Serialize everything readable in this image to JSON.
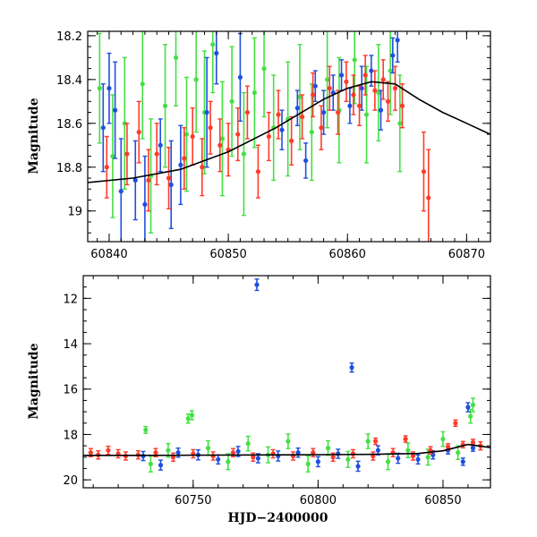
{
  "chart_data": [
    {
      "type": "scatter",
      "panel": "top",
      "xlabel": "",
      "ylabel": "Magnitude",
      "xlim": [
        60838.2,
        60872
      ],
      "ylim": [
        19.14,
        18.18
      ],
      "inverted_y": true,
      "xticks": [
        60840,
        60850,
        60860,
        60870
      ],
      "yticks": [
        18.2,
        18.4,
        18.6,
        18.8,
        19
      ],
      "ytick_labels": [
        "18.2",
        "18.4",
        "18.6",
        "18.8",
        "19"
      ],
      "grid": false,
      "colors": {
        "blue": "#1f4fe0",
        "green": "#44e044",
        "red": "#ff3b2a",
        "model": "#000000"
      },
      "model_curve": {
        "x": [
          60838.2,
          60842,
          60846,
          60850,
          60854,
          60858,
          60860,
          60862,
          60864,
          60866,
          60868,
          60870,
          60872
        ],
        "y": [
          18.87,
          18.85,
          18.81,
          18.73,
          18.62,
          18.49,
          18.44,
          18.41,
          18.42,
          18.49,
          18.55,
          18.6,
          18.65
        ]
      },
      "series": [
        {
          "color": "blue",
          "x": [
            60839.5,
            60840.0,
            60840.5,
            60841.0,
            60842.2,
            60843.0,
            60844.3,
            60845.2,
            60846.0,
            60848.2,
            60849.0,
            60851.0,
            60854.5,
            60855.8,
            60856.5,
            60857.3,
            60858.0,
            60858.8,
            60859.5,
            60860.2,
            60861.2,
            60862.0,
            60862.8,
            60863.8,
            60864.2
          ],
          "y": [
            18.62,
            18.44,
            18.54,
            18.91,
            18.86,
            18.97,
            18.7,
            18.88,
            18.79,
            18.55,
            18.28,
            18.39,
            18.63,
            18.53,
            18.77,
            18.43,
            18.55,
            18.46,
            18.38,
            18.52,
            18.44,
            18.36,
            18.54,
            18.29,
            18.22
          ],
          "err": [
            0.2,
            0.16,
            0.22,
            0.24,
            0.18,
            0.22,
            0.12,
            0.2,
            0.18,
            0.25,
            0.14,
            0.2,
            0.09,
            0.08,
            0.08,
            0.07,
            0.1,
            0.08,
            0.07,
            0.08,
            0.1,
            0.07,
            0.09,
            0.08,
            0.1
          ]
        },
        {
          "color": "green",
          "x": [
            60839.2,
            60840.3,
            60841.3,
            60842.8,
            60843.5,
            60844.7,
            60845.6,
            60846.5,
            60847.3,
            60848.0,
            60848.7,
            60849.5,
            60850.3,
            60851.3,
            60852.2,
            60853.0,
            60853.8,
            60855.0,
            60856.0,
            60857.0,
            60858.3,
            60859.3,
            60860.6,
            60861.6,
            60862.6,
            60863.6,
            60864.4
          ],
          "y": [
            18.44,
            18.75,
            18.6,
            18.42,
            18.84,
            18.52,
            18.3,
            18.65,
            18.4,
            18.55,
            18.24,
            18.67,
            18.5,
            18.74,
            18.46,
            18.35,
            18.62,
            18.58,
            18.48,
            18.64,
            18.4,
            18.54,
            18.31,
            18.56,
            18.46,
            18.36,
            18.6
          ],
          "err": [
            0.25,
            0.28,
            0.3,
            0.25,
            0.26,
            0.28,
            0.22,
            0.26,
            0.24,
            0.28,
            0.22,
            0.26,
            0.25,
            0.28,
            0.25,
            0.22,
            0.24,
            0.26,
            0.24,
            0.22,
            0.22,
            0.24,
            0.2,
            0.22,
            0.22,
            0.2,
            0.22
          ]
        },
        {
          "color": "red",
          "x": [
            60839.8,
            60841.5,
            60842.5,
            60843.3,
            60844.0,
            60845.0,
            60846.3,
            60847.0,
            60847.8,
            60848.5,
            60849.3,
            60850.0,
            60850.8,
            60851.6,
            60852.5,
            60853.4,
            60854.2,
            60855.3,
            60856.2,
            60857.1,
            60857.8,
            60858.5,
            60859.2,
            60859.9,
            60860.5,
            60861.0,
            60861.5,
            60862.3,
            60863.0,
            60863.4,
            60864.0,
            60864.6,
            60866.4,
            60866.8
          ],
          "y": [
            18.8,
            18.74,
            18.64,
            18.86,
            18.74,
            18.85,
            18.76,
            18.66,
            18.8,
            18.62,
            18.7,
            18.72,
            18.65,
            18.55,
            18.82,
            18.66,
            18.56,
            18.68,
            18.57,
            18.47,
            18.62,
            18.44,
            18.55,
            18.41,
            18.47,
            18.52,
            18.38,
            18.45,
            18.4,
            18.5,
            18.44,
            18.52,
            18.82,
            18.94
          ],
          "err": [
            0.14,
            0.14,
            0.14,
            0.14,
            0.14,
            0.14,
            0.14,
            0.13,
            0.13,
            0.12,
            0.12,
            0.12,
            0.12,
            0.12,
            0.12,
            0.11,
            0.11,
            0.11,
            0.1,
            0.1,
            0.1,
            0.1,
            0.1,
            0.09,
            0.09,
            0.09,
            0.09,
            0.09,
            0.09,
            0.09,
            0.1,
            0.1,
            0.18,
            0.22
          ]
        }
      ]
    },
    {
      "type": "scatter",
      "panel": "bottom",
      "xlabel": "HJD−2400000",
      "ylabel": "Magnitude",
      "xlim": [
        60706,
        60869
      ],
      "ylim": [
        20.35,
        11.0
      ],
      "inverted_y": true,
      "xticks": [
        60750,
        60800,
        60850
      ],
      "yticks": [
        12,
        14,
        16,
        18,
        20
      ],
      "ytick_labels": [
        "12",
        "14",
        "16",
        "18",
        "20"
      ],
      "grid": false,
      "colors": {
        "blue": "#1f4fe0",
        "green": "#44e044",
        "red": "#ff3b2a",
        "model": "#000000"
      },
      "model_curve": {
        "x": [
          60706,
          60730,
          60760,
          60790,
          60820,
          60840,
          60850,
          60860,
          60869
        ],
        "y": [
          18.92,
          18.92,
          18.91,
          18.9,
          18.88,
          18.84,
          18.72,
          18.44,
          18.58
        ]
      },
      "series": [
        {
          "color": "blue",
          "x": [
            60730,
            60737,
            60744,
            60752,
            60760,
            60768,
            60776,
            60784,
            60792,
            60800,
            60808,
            60816,
            60824,
            60832,
            60840,
            60846,
            60852,
            60858,
            60862,
            60775.5,
            60813.5,
            60860.0
          ],
          "y": [
            18.95,
            19.35,
            18.8,
            18.9,
            19.1,
            18.75,
            19.05,
            18.95,
            18.8,
            19.2,
            18.85,
            19.4,
            18.7,
            19.05,
            19.1,
            18.9,
            18.7,
            19.2,
            18.6,
            11.4,
            15.05,
            16.8
          ],
          "err": [
            0.2,
            0.22,
            0.2,
            0.22,
            0.2,
            0.22,
            0.2,
            0.22,
            0.2,
            0.22,
            0.2,
            0.22,
            0.2,
            0.22,
            0.2,
            0.18,
            0.16,
            0.16,
            0.14,
            0.25,
            0.2,
            0.2
          ]
        },
        {
          "color": "green",
          "x": [
            60731,
            60733,
            60740,
            60748,
            60749.5,
            60756,
            60764,
            60772,
            60780,
            60788,
            60796,
            60804,
            60812,
            60820,
            60828,
            60836,
            60844,
            60850,
            60856,
            60861,
            60862
          ],
          "y": [
            17.8,
            19.3,
            18.7,
            17.3,
            17.15,
            18.6,
            19.2,
            18.4,
            18.9,
            18.3,
            19.3,
            18.6,
            19.1,
            18.3,
            19.2,
            18.7,
            19.0,
            18.2,
            18.8,
            17.2,
            16.7
          ],
          "err": [
            0.15,
            0.35,
            0.3,
            0.2,
            0.2,
            0.32,
            0.35,
            0.32,
            0.35,
            0.32,
            0.35,
            0.32,
            0.35,
            0.32,
            0.35,
            0.32,
            0.35,
            0.32,
            0.3,
            0.3,
            0.3
          ]
        },
        {
          "color": "red",
          "x": [
            60709,
            60712,
            60716,
            60720,
            60723,
            60728,
            60735,
            60742,
            60750,
            60758,
            60766,
            60774,
            60782,
            60790,
            60798,
            60806,
            60814,
            60822,
            60830,
            60838,
            60845,
            60852,
            60858,
            60862,
            60865,
            60823,
            60835,
            60855
          ],
          "y": [
            18.8,
            18.9,
            18.7,
            18.85,
            18.95,
            18.9,
            18.8,
            19.0,
            18.85,
            18.95,
            18.8,
            19.0,
            18.85,
            18.95,
            18.8,
            19.0,
            18.85,
            18.95,
            18.8,
            18.95,
            18.7,
            18.55,
            18.45,
            18.35,
            18.5,
            18.3,
            18.2,
            17.5
          ],
          "err": [
            0.18,
            0.18,
            0.18,
            0.18,
            0.18,
            0.18,
            0.18,
            0.18,
            0.18,
            0.18,
            0.18,
            0.18,
            0.18,
            0.18,
            0.18,
            0.18,
            0.18,
            0.18,
            0.18,
            0.18,
            0.16,
            0.14,
            0.14,
            0.14,
            0.18,
            0.14,
            0.14,
            0.14
          ]
        }
      ]
    }
  ]
}
